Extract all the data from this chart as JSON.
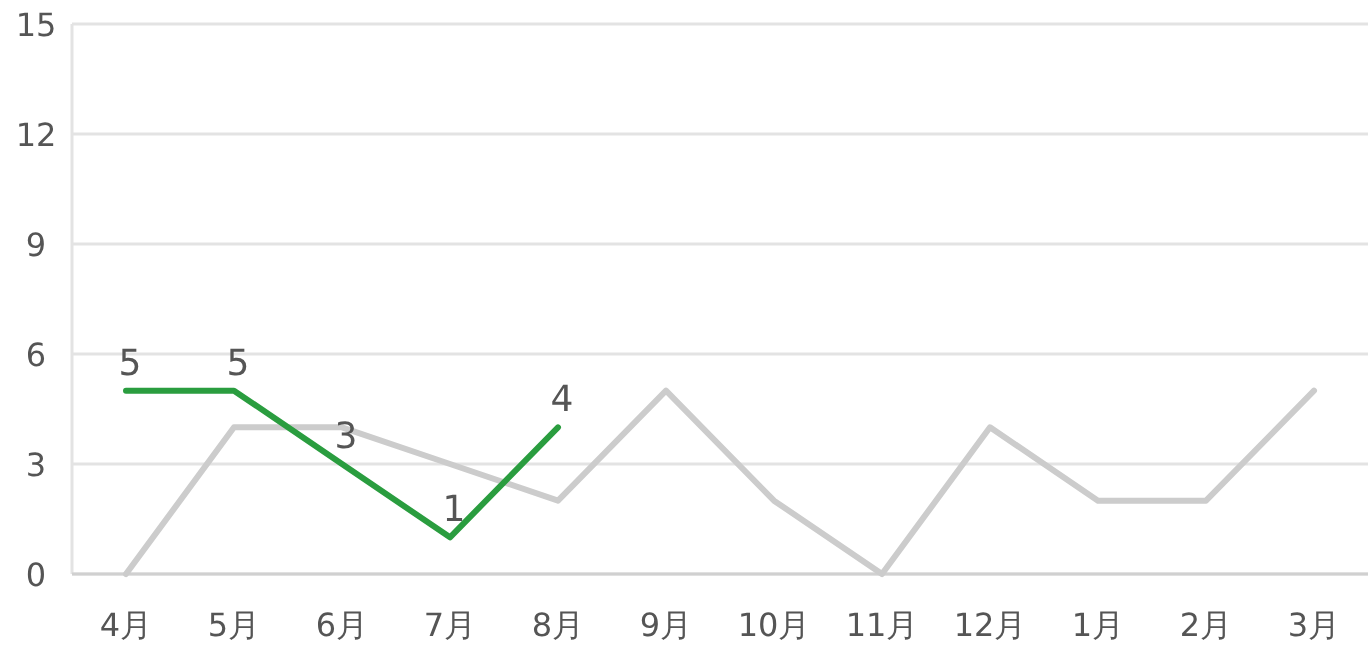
{
  "chart_data": {
    "type": "line",
    "categories": [
      "4月",
      "5月",
      "6月",
      "7月",
      "8月",
      "9月",
      "10月",
      "11月",
      "12月",
      "1月",
      "2月",
      "3月"
    ],
    "series": [
      {
        "color": "#cccccc",
        "values": [
          0,
          4,
          4,
          3,
          2,
          5,
          2,
          0,
          4,
          2,
          2,
          5
        ]
      },
      {
        "color": "#2a9d3f",
        "values": [
          5,
          5,
          3,
          1,
          4,
          null,
          null,
          null,
          null,
          null,
          null,
          null
        ],
        "value_labels": [
          "5",
          "5",
          "3",
          "1",
          "4",
          null,
          null,
          null,
          null,
          null,
          null,
          null
        ]
      }
    ],
    "ylim": [
      0,
      15
    ],
    "yticks": [
      0,
      3,
      6,
      9,
      12,
      15
    ],
    "grid": "y",
    "marker": "none",
    "line_style": "solid"
  }
}
